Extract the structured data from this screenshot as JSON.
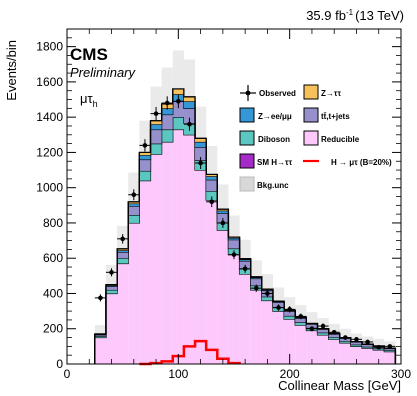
{
  "header": {
    "lumi_value": "35.9 fb",
    "lumi_exp": "-1",
    "lumi_energy": "(13 TeV)",
    "cms": "CMS",
    "preliminary": "Preliminary",
    "channel_mu": "μτ",
    "channel_sub": "h"
  },
  "colors": {
    "reducible": "#fdc8fc",
    "diboson": "#5cc6c0",
    "ttbar": "#9690cc",
    "zll": "#3697d6",
    "ztt": "#f6c05c",
    "smh": "#a52bc8",
    "signal": "#ff0000",
    "bkg_unc": "#d8d8d8",
    "observed": "#000000"
  },
  "chart_data": {
    "type": "bar",
    "xlabel": "Collinear Mass [GeV]",
    "ylabel": "Events/bin",
    "xlim": [
      0,
      300
    ],
    "ylim": [
      0,
      1900
    ],
    "xticks": [
      "0",
      "100",
      "200",
      "300"
    ],
    "yticks": [
      "0",
      "200",
      "400",
      "600",
      "800",
      "1000",
      "1200",
      "1400",
      "1600",
      "1800"
    ],
    "x": [
      30,
      40,
      50,
      60,
      70,
      80,
      90,
      100,
      110,
      120,
      130,
      140,
      150,
      160,
      170,
      180,
      190,
      200,
      210,
      220,
      230,
      240,
      250,
      260,
      270,
      280,
      290
    ],
    "series": [
      {
        "name": "Reducible",
        "values": [
          150,
          400,
          570,
          800,
          1040,
          1190,
          1260,
          1330,
          1300,
          1100,
          930,
          760,
          620,
          510,
          420,
          360,
          300,
          255,
          220,
          190,
          165,
          140,
          120,
          100,
          90,
          80,
          70
        ]
      },
      {
        "name": "Diboson",
        "values": [
          8,
          20,
          30,
          45,
          55,
          60,
          70,
          70,
          65,
          55,
          50,
          40,
          35,
          30,
          25,
          22,
          20,
          18,
          16,
          15,
          13,
          12,
          10,
          10,
          8,
          8,
          7
        ]
      },
      {
        "name": "tt̄,t+jets",
        "values": [
          8,
          20,
          35,
          50,
          65,
          80,
          85,
          90,
          85,
          75,
          65,
          55,
          50,
          45,
          40,
          35,
          30,
          27,
          24,
          22,
          20,
          18,
          16,
          15,
          13,
          12,
          11
        ]
      },
      {
        "name": "Z→ee/μμ",
        "values": [
          2,
          5,
          10,
          15,
          25,
          30,
          35,
          40,
          40,
          30,
          20,
          15,
          10,
          8,
          6,
          5,
          4,
          3,
          3,
          2,
          2,
          2,
          2,
          1,
          1,
          1,
          1
        ]
      },
      {
        "name": "Z→ττ",
        "values": [
          2,
          5,
          8,
          10,
          15,
          20,
          25,
          30,
          25,
          20,
          10,
          8,
          5,
          4,
          3,
          3,
          2,
          2,
          2,
          1,
          1,
          1,
          1,
          1,
          1,
          1,
          1
        ]
      },
      {
        "name": "SM H→ττ",
        "values": [
          0,
          0,
          0,
          0,
          0,
          0,
          0,
          0,
          0,
          0,
          0,
          0,
          0,
          0,
          0,
          0,
          0,
          0,
          0,
          0,
          0,
          0,
          0,
          0,
          0,
          0,
          0
        ]
      }
    ],
    "bkg_unc_fraction": [
      0.3,
      0.25,
      0.2,
      0.18,
      0.15,
      0.14,
      0.14,
      0.14,
      0.14,
      0.14,
      0.15,
      0.16,
      0.17,
      0.18,
      0.19,
      0.2,
      0.22,
      0.24,
      0.26,
      0.28,
      0.3,
      0.32,
      0.34,
      0.36,
      0.38,
      0.4,
      0.42
    ],
    "observed": [
      375,
      520,
      710,
      960,
      1240,
      1420,
      1480,
      1490,
      1360,
      1140,
      920,
      800,
      620,
      540,
      430,
      400,
      320,
      310,
      270,
      200,
      215,
      180,
      150,
      140,
      125,
      95,
      100
    ],
    "observed_err": [
      20,
      23,
      27,
      31,
      35,
      38,
      38,
      39,
      37,
      34,
      30,
      28,
      25,
      23,
      21,
      20,
      18,
      18,
      16,
      14,
      15,
      13,
      12,
      12,
      11,
      10,
      10
    ],
    "signal": {
      "name": "H → μτ (B=20%)",
      "x": [
        70,
        80,
        90,
        100,
        110,
        120,
        130,
        140,
        150
      ],
      "values": [
        0,
        5,
        15,
        45,
        100,
        130,
        80,
        30,
        5
      ]
    },
    "legend": {
      "placement": "top-right",
      "observed": "Observed",
      "ztt": "Z→ττ",
      "zll": "Z→ee/μμ",
      "ttbar": "tt̄,t+jets",
      "diboson": "Diboson",
      "reducible": "Reducible",
      "smh": "SM H→ττ",
      "signal": "H → μτ (B=20%)",
      "unc": "Bkg.unc"
    }
  }
}
